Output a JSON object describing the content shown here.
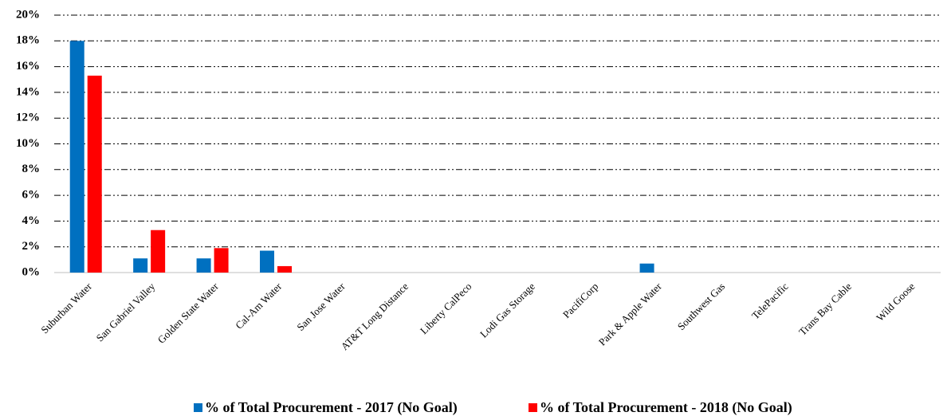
{
  "chart_data": {
    "type": "bar",
    "categories": [
      "Suburban Water",
      "San Gabriel Valley",
      "Golden State Water",
      "Cal-Am Water",
      "San Jose Water",
      "AT&T Long Distance",
      "Liberty CalPeco",
      "Lodi Gas Storage",
      "PacifiCorp",
      "Park & Apple Water",
      "Southwest Gas",
      "TelePacific",
      "Trans Bay Cable",
      "Wild Goose"
    ],
    "series": [
      {
        "name": "% of Total Procurement - 2017 (No Goal)",
        "color": "#0070c0",
        "values": [
          18.0,
          1.1,
          1.1,
          1.7,
          0,
          0,
          0,
          0,
          0,
          0.7,
          0,
          0,
          0,
          0
        ]
      },
      {
        "name": "% of Total Procurement - 2018 (No Goal)",
        "color": "#ff0000",
        "values": [
          15.3,
          3.3,
          1.9,
          0.5,
          0,
          0,
          0,
          0,
          0,
          0,
          0,
          0,
          0,
          0
        ]
      }
    ],
    "ylim": [
      0,
      20
    ],
    "yticks": [
      {
        "value": 0,
        "label": "0%"
      },
      {
        "value": 2,
        "label": "2%"
      },
      {
        "value": 4,
        "label": "4%"
      },
      {
        "value": 6,
        "label": "6%"
      },
      {
        "value": 8,
        "label": "8%"
      },
      {
        "value": 10,
        "label": "10%"
      },
      {
        "value": 12,
        "label": "12%"
      },
      {
        "value": 14,
        "label": "14%"
      },
      {
        "value": 16,
        "label": "16%"
      },
      {
        "value": 18,
        "label": "18%"
      },
      {
        "value": 20,
        "label": "20%"
      }
    ],
    "grid": true,
    "legend": "bottom"
  }
}
